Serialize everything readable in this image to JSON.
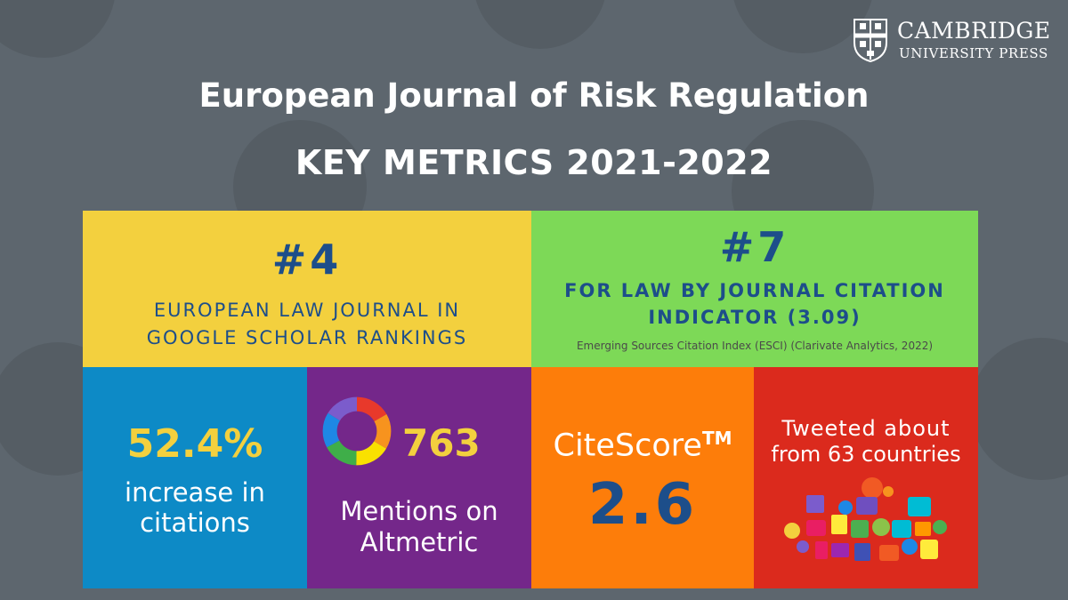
{
  "brand": {
    "line1": "Cambridge",
    "line2": "University Press",
    "logo_name": "cambridge-shield-logo"
  },
  "header": {
    "journal_title": "European Journal of Risk Regulation",
    "subtitle": "KEY METRICS 2021-2022"
  },
  "panels": {
    "ranking": {
      "number": "#4",
      "line1": "EUROPEAN LAW JOURNAL IN",
      "line2": "GOOGLE SCHOLAR RANKINGS",
      "color": "#f3d03e"
    },
    "citation_indicator": {
      "number": "#7",
      "line1": "FOR LAW BY JOURNAL CITATION",
      "line2": "INDICATOR (3.09)",
      "source": "Emerging Sources Citation Index (ESCI) (Clarivate Analytics, 2022)",
      "color": "#7dd957"
    },
    "citations": {
      "value": "52.4%",
      "line1": "increase in",
      "line2": "citations",
      "color": "#0d8ac6"
    },
    "altmetric": {
      "value": "763",
      "line1": "Mentions on",
      "line2": "Altmetric",
      "icon": "altmetric-donut-icon",
      "color": "#74278a"
    },
    "citescore": {
      "label": "CiteScore",
      "tm": "TM",
      "value": "2.6",
      "color": "#fd7d0a"
    },
    "twitter": {
      "line1": "Tweeted about",
      "line2": "from 63 countries",
      "icon": "social-media-icons-cluster",
      "color": "#db2a1d"
    }
  },
  "colors": {
    "background": "#5d666e",
    "accent_blue": "#1d4e8a",
    "accent_yellow": "#f3d03e"
  }
}
